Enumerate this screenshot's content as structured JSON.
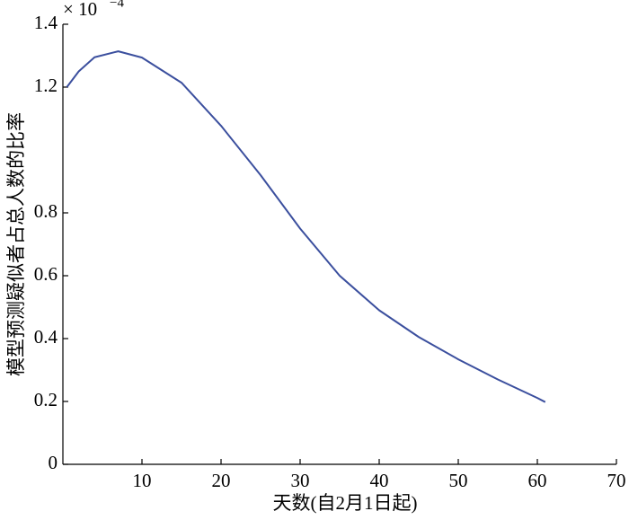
{
  "chart_data": {
    "type": "line",
    "xlabel": "天数(自2月1日起)",
    "ylabel": "模型预测疑似者占总人数的比率",
    "multiplier": "× 10",
    "multiplier_exponent": "−4",
    "x": [
      0.5,
      2,
      4,
      7,
      10,
      15,
      20,
      25,
      30,
      35,
      40,
      45,
      50,
      55,
      60,
      61
    ],
    "series": [
      {
        "color": "#3b4f9e",
        "values": [
          1.2,
          1.25,
          1.295,
          1.314,
          1.294,
          1.214,
          1.077,
          0.92,
          0.75,
          0.6,
          0.49,
          0.405,
          0.334,
          0.27,
          0.211,
          0.198
        ]
      }
    ],
    "xlim": [
      0,
      70
    ],
    "xticks": [
      10,
      20,
      30,
      40,
      50,
      60,
      70
    ],
    "ylim": [
      0,
      1.4
    ],
    "yticks": [
      0,
      0.2,
      0.4,
      0.6,
      0.8,
      1.2,
      1.4
    ]
  }
}
